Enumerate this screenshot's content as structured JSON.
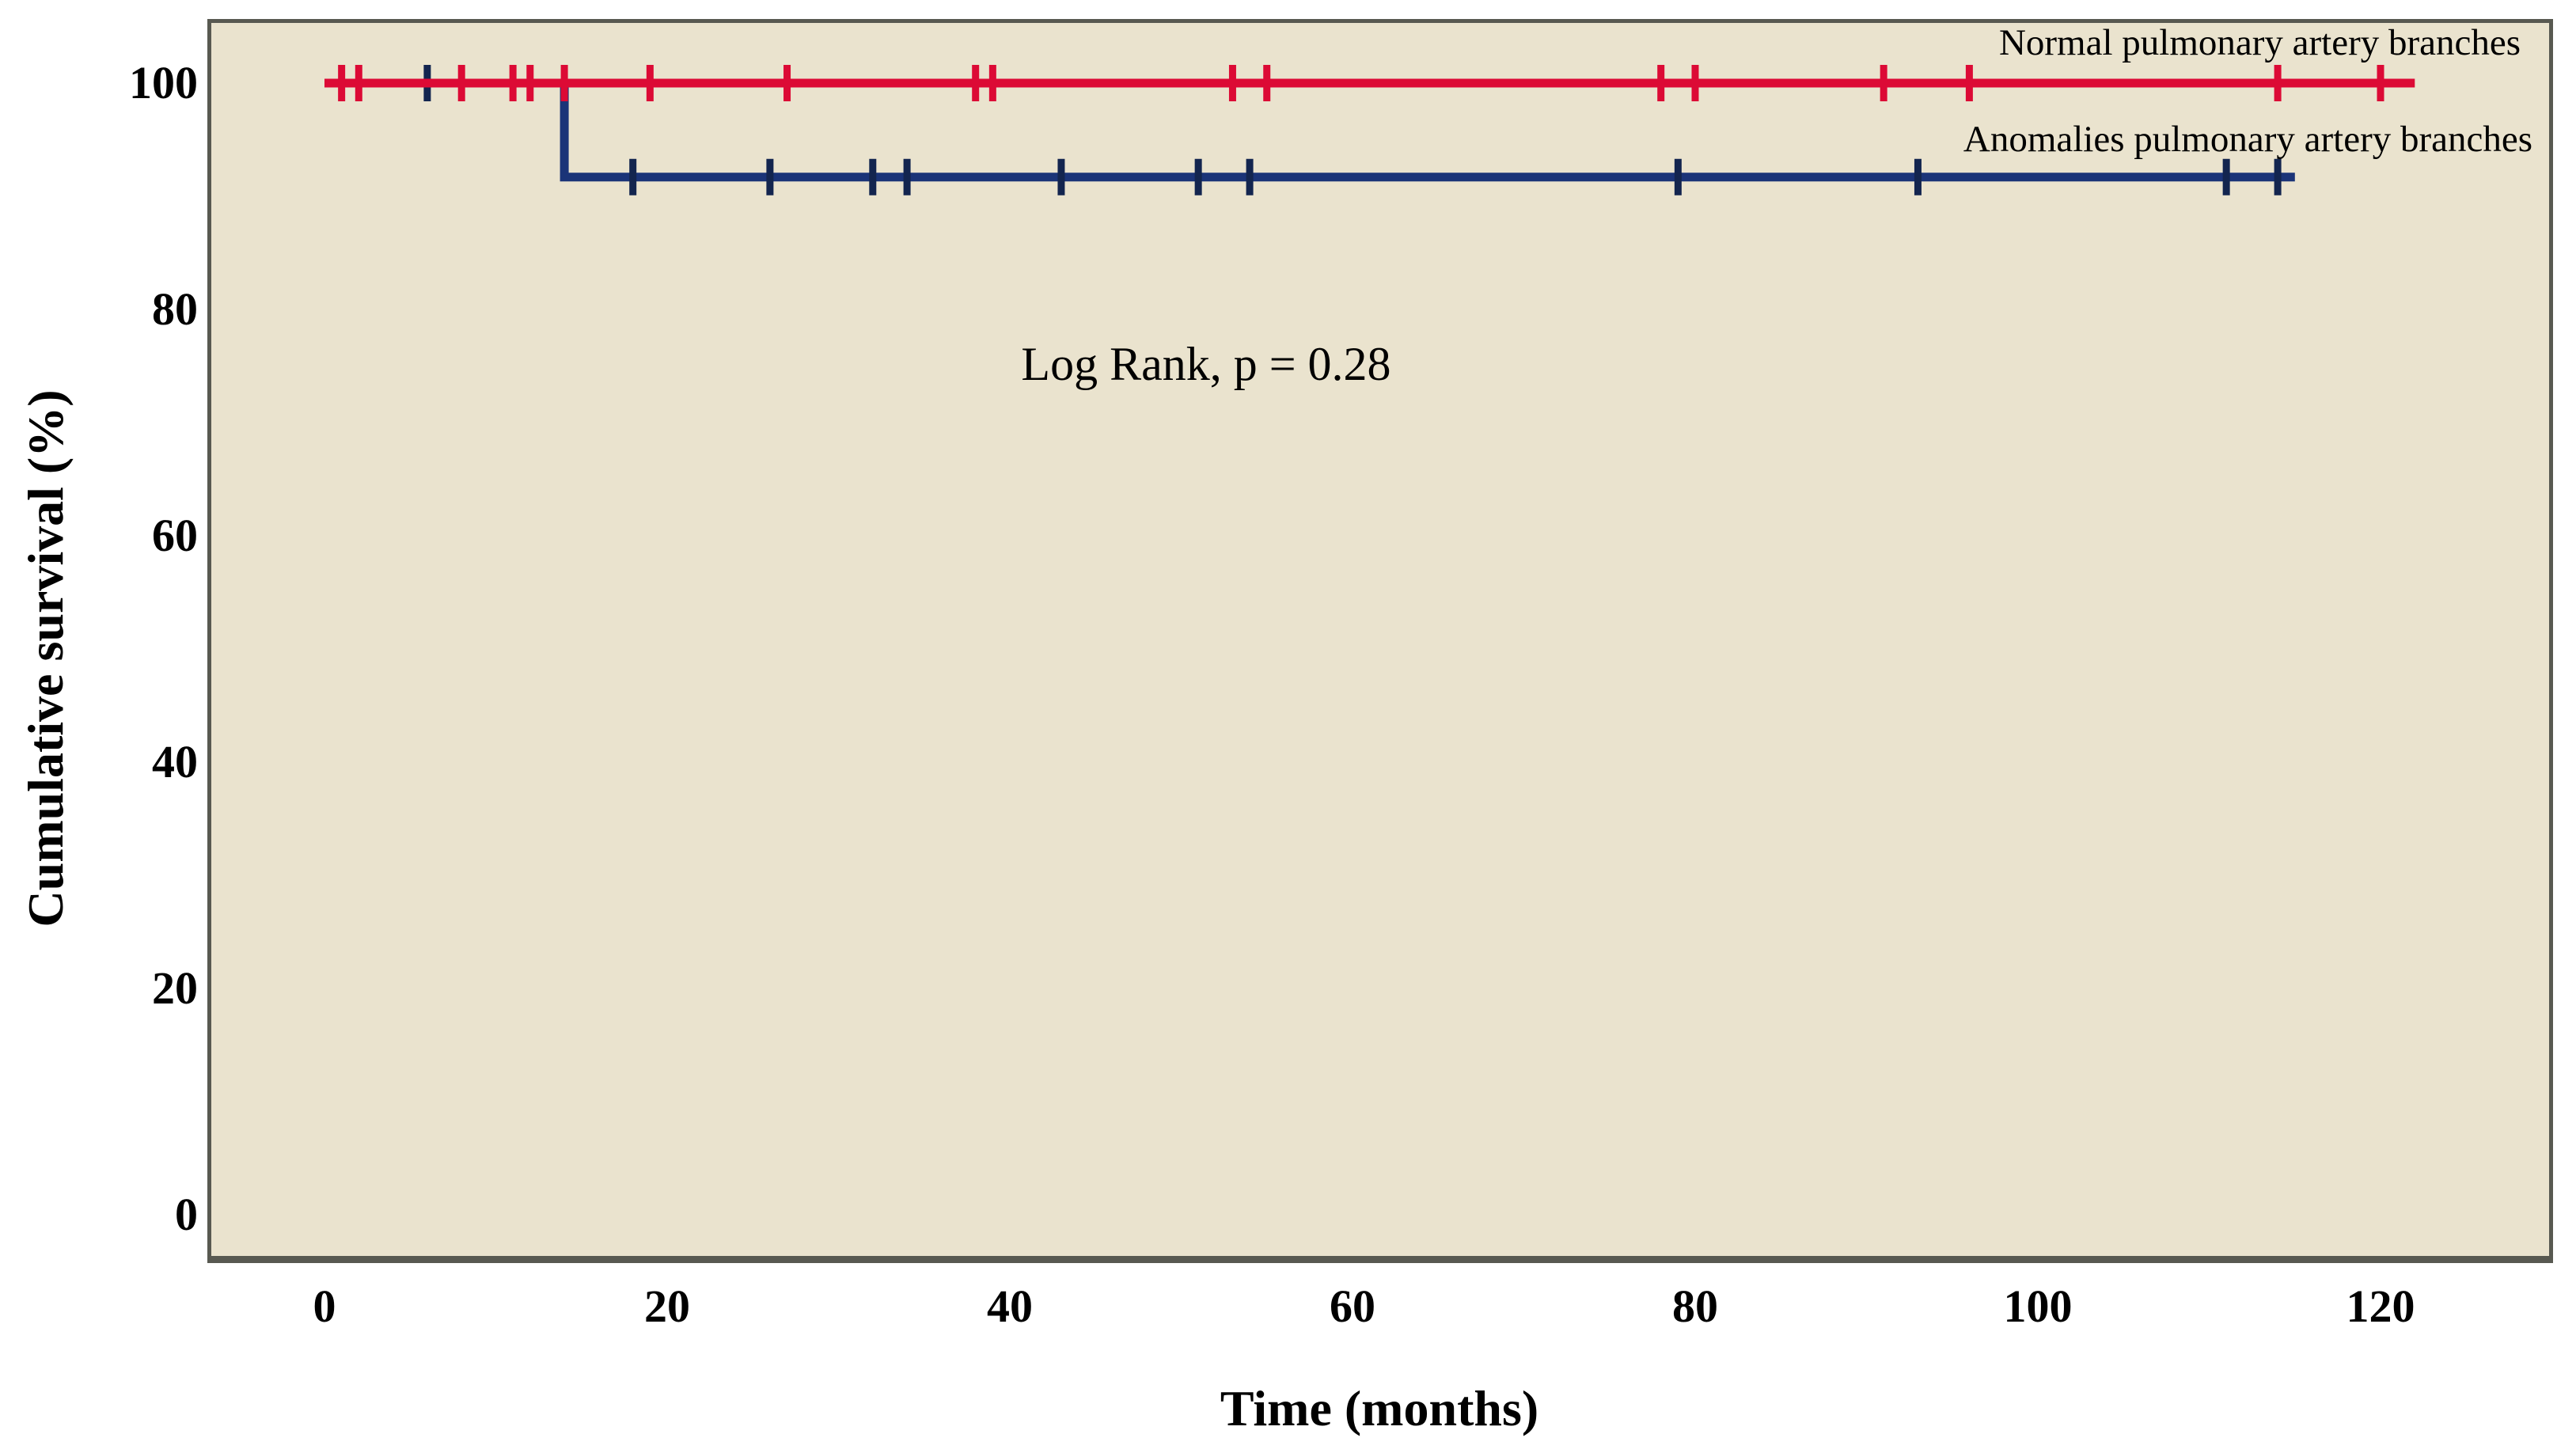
{
  "chart_data": {
    "type": "line",
    "subtype": "kaplan-meier-step",
    "title": "",
    "xlabel": "Time (months)",
    "ylabel": "Cumulative survival (%)",
    "annotation": "Log Rank, p = 0.28",
    "xlim": [
      -7,
      130
    ],
    "ylim": [
      0,
      100
    ],
    "x_ticks": [
      0,
      20,
      40,
      60,
      80,
      100,
      120
    ],
    "y_ticks": [
      100,
      80,
      60,
      40,
      20,
      0
    ],
    "x_tick_labels": [
      "0",
      "20",
      "40",
      "60",
      "80",
      "100",
      "120"
    ],
    "y_tick_labels": [
      "100",
      "80",
      "60",
      "40",
      "20",
      "0"
    ],
    "grid": false,
    "legend_position": "top-right-inside",
    "plot_background_color": "#eae3ce",
    "series": [
      {
        "name": "Anomalies pulmonary artery branches",
        "color": "#1b3478",
        "censor_color": "#13254f",
        "steps": [
          [
            0,
            100
          ],
          [
            14,
            100
          ],
          [
            14,
            91.7
          ],
          [
            115,
            91.7
          ]
        ],
        "events": [
          {
            "time": 14,
            "survival_drops_to": 91.7
          }
        ],
        "censor_marks": [
          [
            6,
            100
          ],
          [
            18,
            91.7
          ],
          [
            26,
            91.7
          ],
          [
            32,
            91.7
          ],
          [
            34,
            91.7
          ],
          [
            43,
            91.7
          ],
          [
            51,
            91.7
          ],
          [
            54,
            91.7
          ],
          [
            79,
            91.7
          ],
          [
            93,
            91.7
          ],
          [
            111,
            91.7
          ],
          [
            114,
            91.7
          ]
        ]
      },
      {
        "name": "Normal pulmonary artery branches",
        "color": "#dc0a35",
        "censor_color": "#dc0a35",
        "steps": [
          [
            0,
            100
          ],
          [
            122,
            100
          ]
        ],
        "events": [],
        "censor_marks": [
          [
            1,
            100
          ],
          [
            2,
            100
          ],
          [
            8,
            100
          ],
          [
            11,
            100
          ],
          [
            12,
            100
          ],
          [
            14,
            100
          ],
          [
            19,
            100
          ],
          [
            27,
            100
          ],
          [
            38,
            100
          ],
          [
            39,
            100
          ],
          [
            53,
            100
          ],
          [
            55,
            100
          ],
          [
            78,
            100
          ],
          [
            80,
            100
          ],
          [
            91,
            100
          ],
          [
            96,
            100
          ],
          [
            114,
            100
          ],
          [
            120,
            100
          ]
        ]
      }
    ]
  }
}
